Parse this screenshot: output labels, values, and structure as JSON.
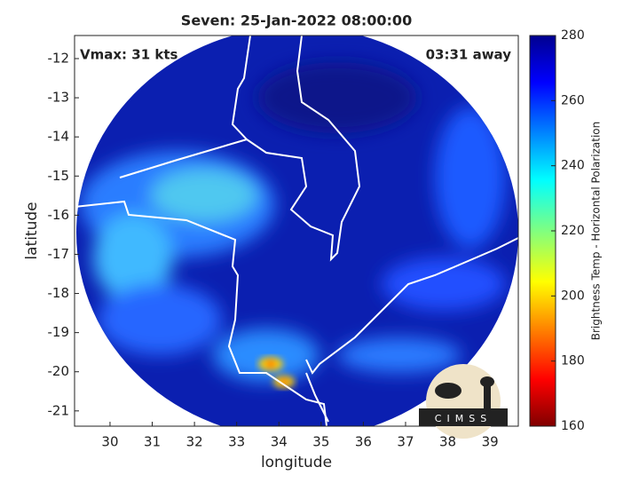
{
  "chart_data": {
    "type": "map",
    "title": "Seven: 25-Jan-2022 08:00:00",
    "annotations": [
      "Vmax: 31 kts",
      "03:31 away"
    ],
    "xlabel": "longitude",
    "ylabel": "latitude",
    "xlim": [
      29.16,
      39.67
    ],
    "ylim": [
      -21.39,
      -11.41
    ],
    "xticks": [
      30,
      31,
      32,
      33,
      34,
      35,
      36,
      37,
      38,
      39
    ],
    "yticks": [
      -21,
      -20,
      -19,
      -18,
      -17,
      -16,
      -15,
      -14,
      -13,
      -12
    ],
    "colorbar": {
      "label": "Brightness Temp - Horizontal Polarization",
      "lim": [
        160,
        280
      ],
      "ticks": [
        160,
        180,
        200,
        220,
        240,
        260,
        280
      ]
    },
    "logo": "CIMSS"
  }
}
